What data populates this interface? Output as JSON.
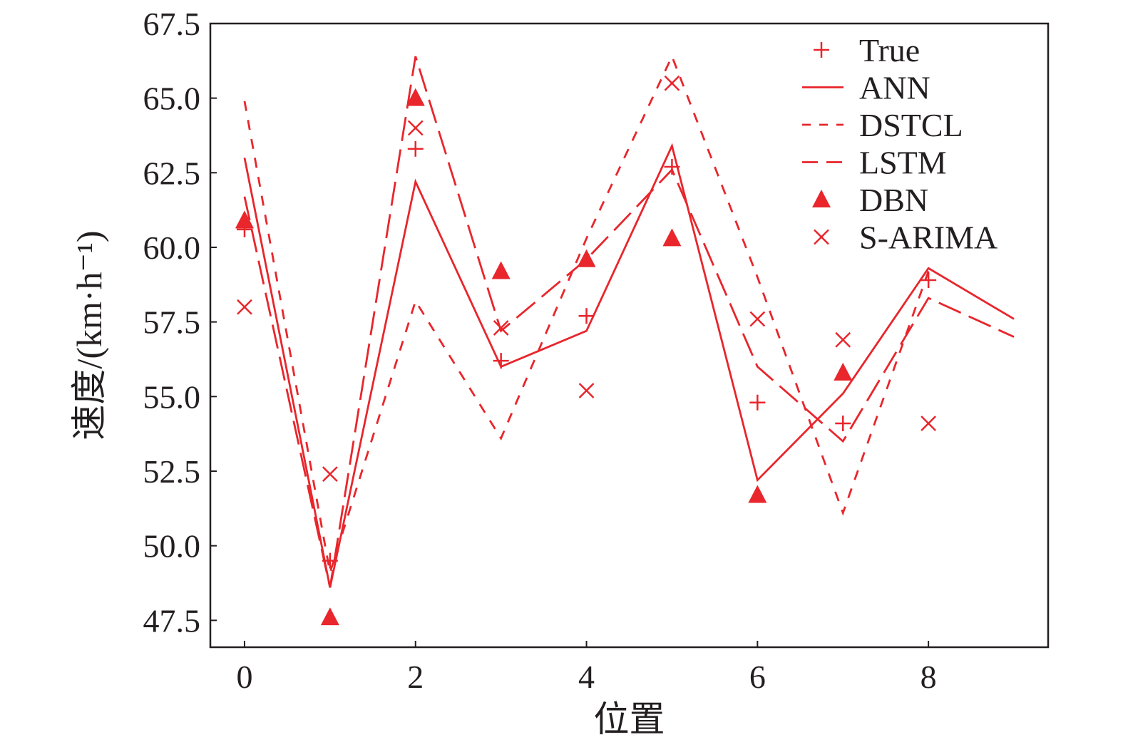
{
  "chart_data": {
    "type": "line",
    "title": "",
    "xlabel": "位置",
    "ylabel": "速度/(km·h⁻¹)",
    "xlim": [
      -0.4,
      9.4
    ],
    "ylim": [
      46.6,
      67.5
    ],
    "x_ticks": [
      0,
      2,
      4,
      6,
      8
    ],
    "x_tick_labels": [
      "0",
      "2",
      "4",
      "6",
      "8"
    ],
    "y_ticks": [
      47.5,
      50.0,
      52.5,
      55.0,
      57.5,
      60.0,
      62.5,
      65.0,
      67.5
    ],
    "y_tick_labels": [
      "47.5",
      "50.0",
      "52.5",
      "55.0",
      "57.5",
      "60.0",
      "62.5",
      "65.0",
      "67.5"
    ],
    "grid": false,
    "legend_position": "top-right",
    "colors": {
      "series": "#e8262c",
      "axis": "#231f20"
    },
    "series": [
      {
        "name": "True",
        "style": "plus-marker",
        "x": [
          0,
          1,
          2,
          3,
          4,
          5,
          6,
          7,
          8
        ],
        "values": [
          60.6,
          49.5,
          63.3,
          56.2,
          57.7,
          62.7,
          54.8,
          54.1,
          58.9
        ]
      },
      {
        "name": "ANN",
        "style": "solid-line",
        "x": [
          0,
          1,
          2,
          3,
          4,
          5,
          6,
          7,
          8,
          9
        ],
        "values": [
          63.0,
          48.6,
          62.2,
          56.0,
          57.2,
          63.4,
          52.2,
          55.1,
          59.3,
          57.6
        ]
      },
      {
        "name": "DSTCL",
        "style": "short-dash-line",
        "x": [
          0,
          1,
          2,
          3,
          4,
          5,
          6,
          7,
          8
        ],
        "values": [
          64.9,
          49.1,
          58.2,
          53.6,
          60.3,
          66.4,
          59.0,
          51.1,
          59.2
        ]
      },
      {
        "name": "LSTM",
        "style": "long-dash-line",
        "x": [
          0,
          1,
          2,
          3,
          4,
          5,
          6,
          7,
          8,
          9
        ],
        "values": [
          61.7,
          48.6,
          66.4,
          57.2,
          59.6,
          62.6,
          56.0,
          53.5,
          58.3,
          57.0
        ]
      },
      {
        "name": "DBN",
        "style": "triangle-marker",
        "x": [
          0,
          1,
          2,
          3,
          4,
          5,
          6,
          7
        ],
        "values": [
          60.9,
          47.6,
          65.0,
          59.2,
          59.6,
          60.3,
          51.7,
          55.8
        ]
      },
      {
        "name": "S-ARIMA",
        "style": "x-marker",
        "x": [
          0,
          1,
          2,
          3,
          4,
          5,
          6,
          7,
          8
        ],
        "values": [
          58.0,
          52.4,
          64.0,
          57.3,
          55.2,
          65.5,
          57.6,
          56.9,
          54.1
        ]
      }
    ]
  }
}
